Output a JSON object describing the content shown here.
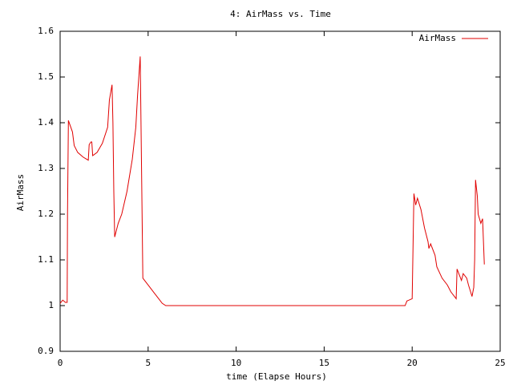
{
  "chart_data": {
    "type": "line",
    "title": "4: AirMass vs. Time",
    "x_label": "time (Elapse Hours)",
    "y_label": "AirMass",
    "x": [
      0,
      0.15,
      0.3,
      0.4,
      0.42,
      0.47,
      0.7,
      0.8,
      1.0,
      1.3,
      1.6,
      1.65,
      1.75,
      1.8,
      1.85,
      2.1,
      2.4,
      2.7,
      2.8,
      2.95,
      3.0,
      3.05,
      3.1,
      3.3,
      3.5,
      3.8,
      4.1,
      4.3,
      4.4,
      4.55,
      4.7,
      5.0,
      5.3,
      5.6,
      5.8,
      6.0,
      19.6,
      19.7,
      20.0,
      20.1,
      20.2,
      20.3,
      20.5,
      20.7,
      20.9,
      20.95,
      21.05,
      21.3,
      21.4,
      21.7,
      22.0,
      22.2,
      22.5,
      22.55,
      22.7,
      22.8,
      22.9,
      23.1,
      23.2,
      23.4,
      23.5,
      23.55,
      23.6,
      23.7,
      23.75,
      23.9,
      24.0,
      24.1
    ],
    "series": [
      {
        "name": "AirMass",
        "color": "#e00000",
        "values": [
          1.005,
          1.012,
          1.007,
          1.007,
          1.2,
          1.405,
          1.38,
          1.35,
          1.335,
          1.325,
          1.318,
          1.352,
          1.358,
          1.358,
          1.328,
          1.335,
          1.355,
          1.39,
          1.45,
          1.483,
          1.4,
          1.25,
          1.15,
          1.18,
          1.2,
          1.25,
          1.32,
          1.39,
          1.46,
          1.545,
          1.06,
          1.045,
          1.03,
          1.015,
          1.005,
          1.0,
          1.0,
          1.01,
          1.015,
          1.245,
          1.22,
          1.235,
          1.21,
          1.17,
          1.14,
          1.125,
          1.135,
          1.11,
          1.085,
          1.06,
          1.045,
          1.03,
          1.015,
          1.08,
          1.065,
          1.055,
          1.07,
          1.06,
          1.045,
          1.02,
          1.04,
          1.1,
          1.275,
          1.24,
          1.2,
          1.18,
          1.19,
          1.09
        ]
      }
    ],
    "xlim": [
      0,
      25
    ],
    "xticks": [
      0,
      5,
      10,
      15,
      20,
      25
    ],
    "ylim": [
      0.9,
      1.6
    ],
    "yticks": [
      0.9,
      1,
      1.1,
      1.2,
      1.3,
      1.4,
      1.5,
      1.6
    ],
    "legend": "top-right"
  }
}
